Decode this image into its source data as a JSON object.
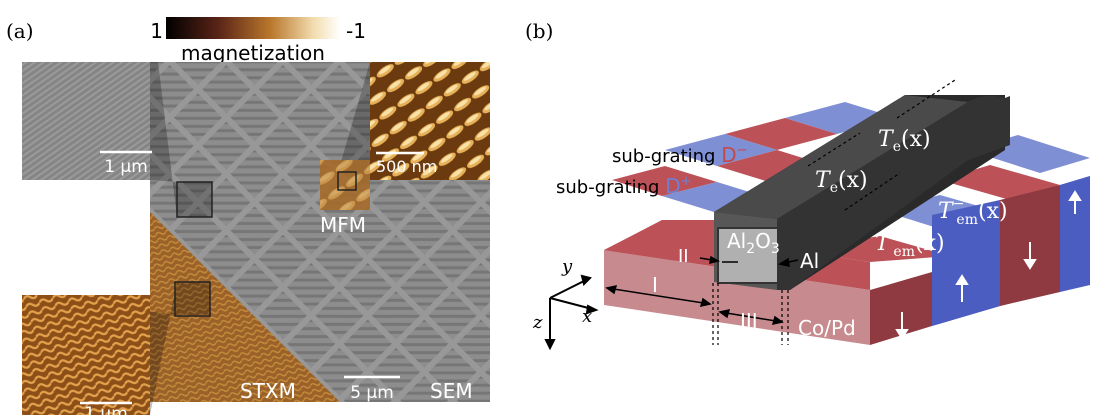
{
  "panel_a": {
    "label": "(a)",
    "colorbar": {
      "min_label": "1",
      "max_label": "-1",
      "title": "magnetization",
      "colors": [
        "#000000",
        "#5a2417",
        "#b9772c",
        "#f3ddb0",
        "#ffffff"
      ]
    },
    "scalebars": {
      "sem_inset": "1 μm",
      "mfm_inset": "500 nm",
      "stxm_inset": "1 μm",
      "main": "5 μm"
    },
    "labels": {
      "mfm": "MFM",
      "stxm": "STXM",
      "sem": "SEM"
    }
  },
  "panel_b": {
    "label": "(b)",
    "sub_grating_minus": {
      "text": "sub-grating ",
      "symbol": "D",
      "sup": "−",
      "color": "#c24a4e"
    },
    "sub_grating_plus": {
      "text": "sub-grating ",
      "symbol": "D",
      "sup": "+",
      "color": "#6f7fd6"
    },
    "te1": {
      "var": "T",
      "sub": "e",
      "arg": "(x)"
    },
    "te2": {
      "var": "T",
      "sub": "e",
      "arg": "(x)"
    },
    "tem_minus": {
      "var": "T",
      "sub": "em",
      "sup": "−",
      "arg": "(x)"
    },
    "tem_plus": {
      "var": "T",
      "sub": "em",
      "sup": "+",
      "arg": "(x)"
    },
    "al2o3": {
      "a": "Al",
      "b": "2",
      "c": "O",
      "d": "3"
    },
    "al": "Al",
    "copd": "Co/Pd",
    "region_i": "I",
    "region_ii": "II",
    "region_iii": "III",
    "axes": {
      "x": "x",
      "y": "y",
      "z": "z"
    },
    "colors": {
      "red_top": "#bc5258",
      "red_front": "#c78b8f",
      "red_side": "#8e3a40",
      "blue_top": "#7f8fd4",
      "blue_front": "#5a6bc4",
      "blue_side": "#4b5dc0",
      "dark_top": "#4a4a4a",
      "dark_front": "#575757",
      "dark_side": "#2a2a2a"
    }
  }
}
